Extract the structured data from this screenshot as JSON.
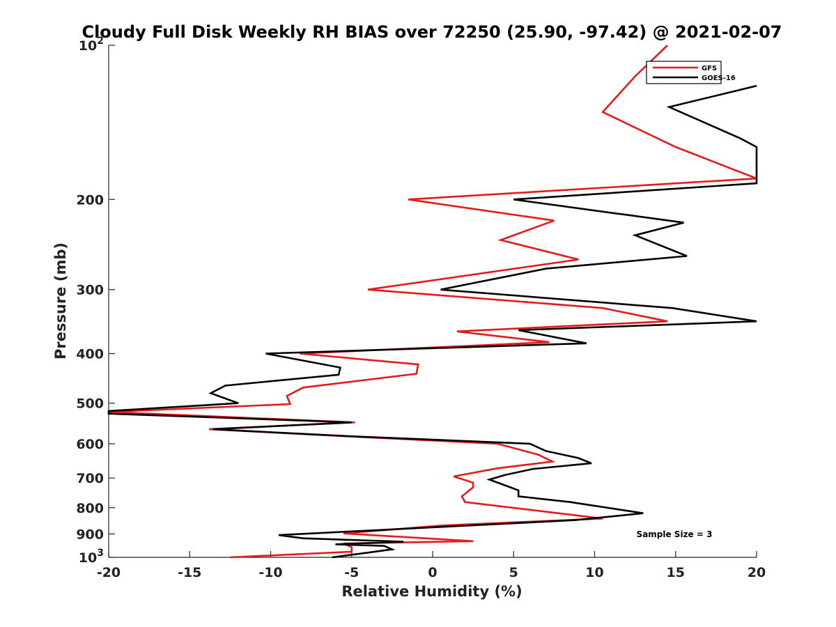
{
  "chart_data": {
    "type": "line",
    "title": "Cloudy Full Disk Weekly RH BIAS over 72250 (25.90, -97.42) @ 2021-02-07",
    "xlabel": "Relative Humidity (%)",
    "ylabel": "Pressure (mb)",
    "xlim": [
      -20,
      20
    ],
    "ylim": [
      100,
      1000
    ],
    "yscale": "log",
    "y_reversed": true,
    "grid": false,
    "legend_position": "top-right",
    "x_ticks": [
      -20,
      -15,
      -10,
      -5,
      0,
      5,
      10,
      15,
      20
    ],
    "x_tick_labels": [
      "-20",
      "-15",
      "-10",
      "-5",
      "0",
      "5",
      "10",
      "15",
      "20"
    ],
    "y_ticks": [
      100,
      200,
      300,
      400,
      500,
      600,
      700,
      800,
      900,
      1000
    ],
    "y_tick_labels": [
      {
        "base": "10",
        "exp": "2"
      },
      {
        "base": "200",
        "exp": ""
      },
      {
        "base": "300",
        "exp": ""
      },
      {
        "base": "400",
        "exp": ""
      },
      {
        "base": "500",
        "exp": ""
      },
      {
        "base": "600",
        "exp": ""
      },
      {
        "base": "700",
        "exp": ""
      },
      {
        "base": "800",
        "exp": ""
      },
      {
        "base": "900",
        "exp": ""
      },
      {
        "base": "10",
        "exp": "3"
      }
    ],
    "annotation": "Sample Size = 3",
    "series": [
      {
        "name": "GFS",
        "color": "#e41a1c",
        "points": [
          [
            14.5,
            100
          ],
          [
            12.5,
            115
          ],
          [
            10.5,
            135
          ],
          [
            15.0,
            158
          ],
          [
            20.0,
            182
          ],
          [
            -1.5,
            200
          ],
          [
            7.5,
            220
          ],
          [
            4.2,
            240
          ],
          [
            9.0,
            262
          ],
          [
            -4.0,
            300
          ],
          [
            10.5,
            326
          ],
          [
            14.5,
            346
          ],
          [
            1.5,
            362
          ],
          [
            7.2,
            380
          ],
          [
            -8.2,
            400
          ],
          [
            -0.9,
            420
          ],
          [
            -1.0,
            438
          ],
          [
            -8.0,
            466
          ],
          [
            -9.0,
            484
          ],
          [
            -8.8,
            502
          ],
          [
            -20.0,
            520
          ],
          [
            -4.8,
            545
          ],
          [
            -13.8,
            562
          ],
          [
            -5.5,
            580
          ],
          [
            4.0,
            600
          ],
          [
            6.5,
            630
          ],
          [
            7.4,
            650
          ],
          [
            4.0,
            670
          ],
          [
            1.3,
            695
          ],
          [
            2.5,
            715
          ],
          [
            2.5,
            730
          ],
          [
            1.8,
            760
          ],
          [
            2.0,
            780
          ],
          [
            10.5,
            840
          ],
          [
            0.5,
            867
          ],
          [
            -5.5,
            898
          ],
          [
            2.5,
            930
          ],
          [
            -5.5,
            940
          ],
          [
            -5.0,
            955
          ],
          [
            -5.0,
            975
          ],
          [
            -12.5,
            1000
          ]
        ]
      },
      {
        "name": "GOES-16",
        "color": "#000000",
        "points": [
          [
            20.0,
            120
          ],
          [
            14.6,
            132
          ],
          [
            19.0,
            152
          ],
          [
            20.0,
            158
          ],
          [
            20.0,
            186
          ],
          [
            5.0,
            200
          ],
          [
            15.5,
            222
          ],
          [
            12.5,
            235
          ],
          [
            15.7,
            258
          ],
          [
            7.0,
            273
          ],
          [
            0.5,
            300
          ],
          [
            14.8,
            326
          ],
          [
            20.0,
            346
          ],
          [
            5.3,
            360
          ],
          [
            9.5,
            382
          ],
          [
            -10.3,
            400
          ],
          [
            -5.7,
            426
          ],
          [
            -5.8,
            440
          ],
          [
            -12.8,
            462
          ],
          [
            -13.7,
            478
          ],
          [
            -12.0,
            500
          ],
          [
            -20.0,
            518
          ],
          [
            -20.0,
            524
          ],
          [
            -5.0,
            545
          ],
          [
            -13.6,
            562
          ],
          [
            -5.2,
            580
          ],
          [
            6.0,
            600
          ],
          [
            7.0,
            620
          ],
          [
            9.0,
            640
          ],
          [
            9.8,
            655
          ],
          [
            6.2,
            672
          ],
          [
            4.5,
            690
          ],
          [
            3.5,
            705
          ],
          [
            4.8,
            730
          ],
          [
            5.3,
            740
          ],
          [
            5.3,
            760
          ],
          [
            8.5,
            780
          ],
          [
            13.0,
            820
          ],
          [
            8.8,
            846
          ],
          [
            -9.5,
            905
          ],
          [
            -8.0,
            918
          ],
          [
            -1.8,
            932
          ],
          [
            -6.0,
            943
          ],
          [
            -3.0,
            950
          ],
          [
            -2.5,
            965
          ],
          [
            -6.2,
            1000
          ]
        ]
      }
    ]
  }
}
